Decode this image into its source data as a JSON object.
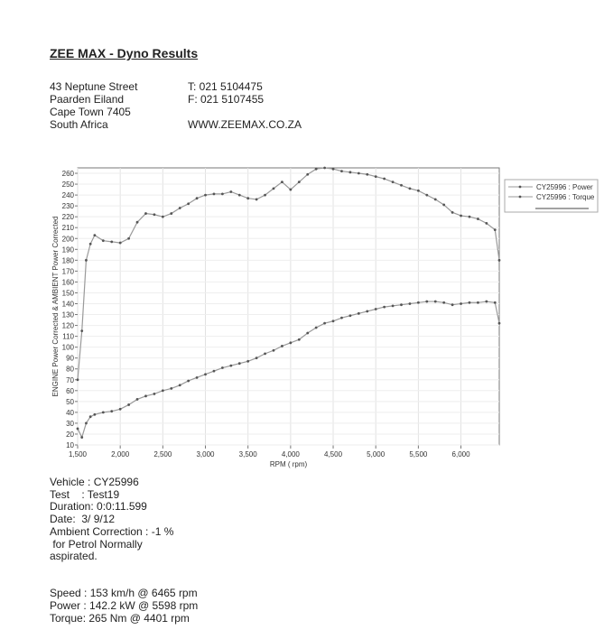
{
  "header": {
    "title": "ZEE MAX - Dyno Results",
    "address": [
      "43 Neptune Street",
      "Paarden Eiland",
      "Cape Town 7405",
      "South Africa"
    ],
    "contact": [
      "T: 021 5104475",
      "F: 021 5107455",
      "",
      "WWW.ZEEMAX.CO.ZA"
    ]
  },
  "chart_data": {
    "type": "line",
    "ylabel": "ENGINE Power Corrected & AMBIENT Power Corrected",
    "xlabel": "RPM ( rpm)",
    "x": [
      1500,
      1550,
      1600,
      1650,
      1700,
      1800,
      1900,
      2000,
      2100,
      2200,
      2300,
      2400,
      2500,
      2600,
      2700,
      2800,
      2900,
      3000,
      3100,
      3200,
      3300,
      3400,
      3500,
      3600,
      3700,
      3800,
      3900,
      4000,
      4100,
      4200,
      4300,
      4400,
      4500,
      4600,
      4700,
      4800,
      4900,
      5000,
      5100,
      5200,
      5300,
      5400,
      5500,
      5600,
      5700,
      5800,
      5900,
      6000,
      6100,
      6200,
      6300,
      6400,
      6450
    ],
    "series": [
      {
        "name": "CY25996 : Power",
        "color": "#9a9a9a",
        "values": [
          25,
          17,
          30,
          36,
          38,
          40,
          41,
          43,
          47,
          52,
          55,
          57,
          60,
          62,
          65,
          69,
          72,
          75,
          78,
          81,
          83,
          85,
          87,
          90,
          94,
          97,
          101,
          104,
          107,
          113,
          118,
          122,
          124,
          127,
          129,
          131,
          133,
          135,
          137,
          138,
          139,
          140,
          141,
          142,
          142,
          141,
          139,
          140,
          141,
          141,
          142,
          141,
          122
        ]
      },
      {
        "name": "CY25996 : Torque",
        "color": "#9a9a9a",
        "values": [
          70,
          115,
          180,
          195,
          203,
          198,
          197,
          196,
          200,
          215,
          223,
          222,
          220,
          223,
          228,
          232,
          237,
          240,
          241,
          241,
          243,
          240,
          237,
          236,
          240,
          246,
          252,
          245,
          252,
          259,
          264,
          265,
          264,
          262,
          261,
          260,
          259,
          257,
          255,
          252,
          249,
          246,
          244,
          240,
          236,
          231,
          224,
          221,
          220,
          218,
          214,
          208,
          180
        ]
      }
    ],
    "xlim": [
      1500,
      6450
    ],
    "ylim": [
      10,
      265
    ],
    "xticks": [
      {
        "value": 1500,
        "label": "1,500"
      },
      {
        "value": 2000,
        "label": "2,000"
      },
      {
        "value": 2500,
        "label": "2,500"
      },
      {
        "value": 3000,
        "label": "3,000"
      },
      {
        "value": 3500,
        "label": "3,500"
      },
      {
        "value": 4000,
        "label": "4,000"
      },
      {
        "value": 4500,
        "label": "4,500"
      },
      {
        "value": 5000,
        "label": "5,000"
      },
      {
        "value": 5500,
        "label": "5,500"
      },
      {
        "value": 6000,
        "label": "6,000"
      }
    ],
    "yticks": [
      10,
      20,
      30,
      40,
      50,
      60,
      70,
      80,
      90,
      100,
      110,
      120,
      130,
      140,
      150,
      160,
      170,
      180,
      190,
      200,
      210,
      220,
      230,
      240,
      250,
      260
    ],
    "grid": true
  },
  "info": [
    "Vehicle : CY25996",
    "Test    : Test19",
    "Duration: 0:0:11.599",
    "Date:  3/ 9/12",
    "Ambient Correction : -1 %",
    " for Petrol Normally",
    "aspirated."
  ],
  "results": [
    "Speed : 153 km/h @ 6465 rpm",
    "Power : 142.2 kW @ 5598 rpm",
    "Torque: 265 Nm @ 4401 rpm"
  ]
}
